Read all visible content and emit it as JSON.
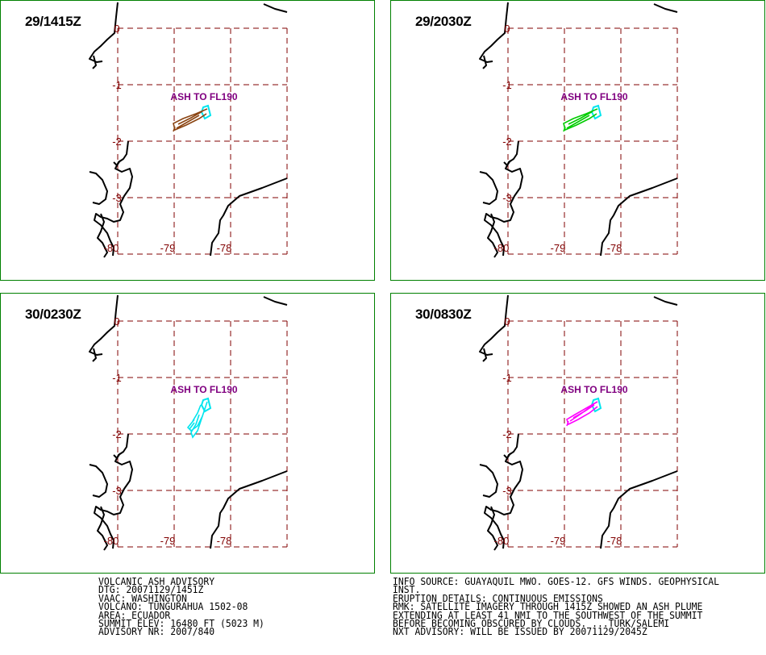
{
  "panels": [
    {
      "title": "29/1415Z",
      "plume_color": "#8b4513",
      "ash_label": "ASH TO FL190"
    },
    {
      "title": "29/2030Z",
      "plume_color": "#00cc00",
      "ash_label": "ASH TO FL190"
    },
    {
      "title": "30/0230Z",
      "plume_color": "#00e5ee",
      "ash_label": "ASH TO FL190"
    },
    {
      "title": "30/0830Z",
      "plume_color": "#ff00ff",
      "ash_label": "ASH TO FL190"
    }
  ],
  "map_ticks": {
    "lat": [
      "0",
      "-1",
      "-2",
      "-3"
    ],
    "lon": [
      "-80",
      "-79",
      "-78"
    ]
  },
  "colors": {
    "grid": "#800000",
    "frame": "#008000",
    "coast": "#000000",
    "summit": "#00e5ee",
    "ash_label": "#800080"
  },
  "advisory_left": [
    "VOLCANIC ASH ADVISORY",
    "DTG: 20071129/1451Z",
    "VAAC: WASHINGTON",
    "VOLCANO: TUNGURAHUA 1502-08",
    "AREA: ECUADOR",
    "SUMMIT ELEV: 16480 FT (5023 M)",
    "ADVISORY NR: 2007/840"
  ],
  "advisory_right": [
    "INFO SOURCE: GUAYAQUIL MWO. GOES-12. GFS WINDS. GEOPHYSICAL",
    "INST.",
    "ERUPTION DETAILS: CONTINUOUS EMISSIONS",
    "RMK: SATELLITE IMAGERY THROUGH 1415Z SHOWED AN ASH PLUME",
    "EXTENDING AT LEAST 41 NMI TO THE SOUTHWEST OF THE SUMMIT",
    "BEFORE BECOMING OBSCURED BY CLOUDS. ...TURK/SALEMI",
    "NXT ADVISORY: WILL BE ISSUED BY 20071129/2045Z"
  ]
}
